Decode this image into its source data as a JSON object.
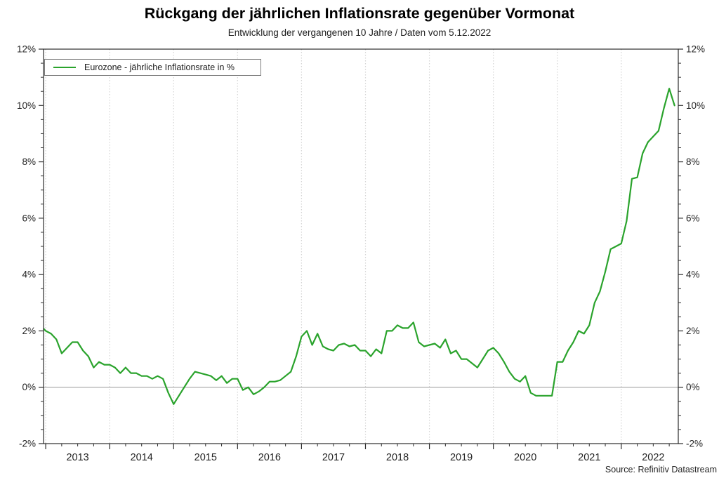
{
  "header": {
    "title": "Rückgang der jährlichen Inflationsrate gegenüber Vormonat",
    "subtitle": "Entwicklung der vergangenen 10 Jahre / Daten vom 5.12.2022"
  },
  "legend": {
    "label": "Eurozone - jährliche Inflationsrate in %",
    "line_color": "#2aa32c"
  },
  "source": "Source: Refinitiv Datastream",
  "colors": {
    "line": "#2aa32c",
    "grid": "#d4d4d4",
    "zero_line": "#999999",
    "axis": "#2b2b2b",
    "text": "#242424"
  },
  "chart_data": {
    "type": "line",
    "title": "Rückgang der jährlichen Inflationsrate gegenüber Vormonat",
    "subtitle": "Entwicklung der vergangenen 10 Jahre / Daten vom 5.12.2022",
    "frequency": "monthly",
    "x_start": "2012-12",
    "x_end": "2022-11",
    "x_year_labels": [
      "2013",
      "2014",
      "2015",
      "2016",
      "2017",
      "2018",
      "2019",
      "2020",
      "2021",
      "2022"
    ],
    "ylim": [
      -2,
      12
    ],
    "y_major_step": 2,
    "y_minor_step": 0.5,
    "y_tick_suffix": "%",
    "grid": {
      "vertical_years": "dotted",
      "horizontal": "zero-line-only"
    },
    "legend_position": "top-left",
    "series": [
      {
        "name": "Eurozone - jährliche Inflationsrate in %",
        "color": "#2aa32c",
        "values": [
          2.2,
          2.0,
          1.9,
          1.7,
          1.2,
          1.4,
          1.6,
          1.6,
          1.3,
          1.1,
          0.7,
          0.9,
          0.8,
          0.8,
          0.7,
          0.5,
          0.7,
          0.5,
          0.5,
          0.4,
          0.4,
          0.3,
          0.4,
          0.3,
          -0.2,
          -0.6,
          -0.3,
          0.0,
          0.3,
          0.55,
          0.5,
          0.45,
          0.4,
          0.25,
          0.4,
          0.15,
          0.3,
          0.3,
          -0.1,
          0.0,
          -0.25,
          -0.15,
          0.0,
          0.2,
          0.2,
          0.25,
          0.4,
          0.55,
          1.1,
          1.8,
          2.0,
          1.5,
          1.9,
          1.45,
          1.35,
          1.3,
          1.5,
          1.55,
          1.45,
          1.5,
          1.3,
          1.3,
          1.1,
          1.35,
          1.2,
          2.0,
          2.0,
          2.2,
          2.1,
          2.1,
          2.3,
          1.6,
          1.45,
          1.5,
          1.55,
          1.4,
          1.7,
          1.2,
          1.3,
          1.0,
          1.0,
          0.85,
          0.7,
          1.0,
          1.3,
          1.4,
          1.2,
          0.9,
          0.55,
          0.3,
          0.2,
          0.4,
          -0.2,
          -0.3,
          -0.3,
          -0.3,
          -0.3,
          0.9,
          0.9,
          1.3,
          1.6,
          2.0,
          1.9,
          2.2,
          3.0,
          3.4,
          4.1,
          4.9,
          5.0,
          5.1,
          5.9,
          7.4,
          7.45,
          8.3,
          8.7,
          8.9,
          9.1,
          9.9,
          10.6,
          10.0
        ]
      }
    ]
  }
}
